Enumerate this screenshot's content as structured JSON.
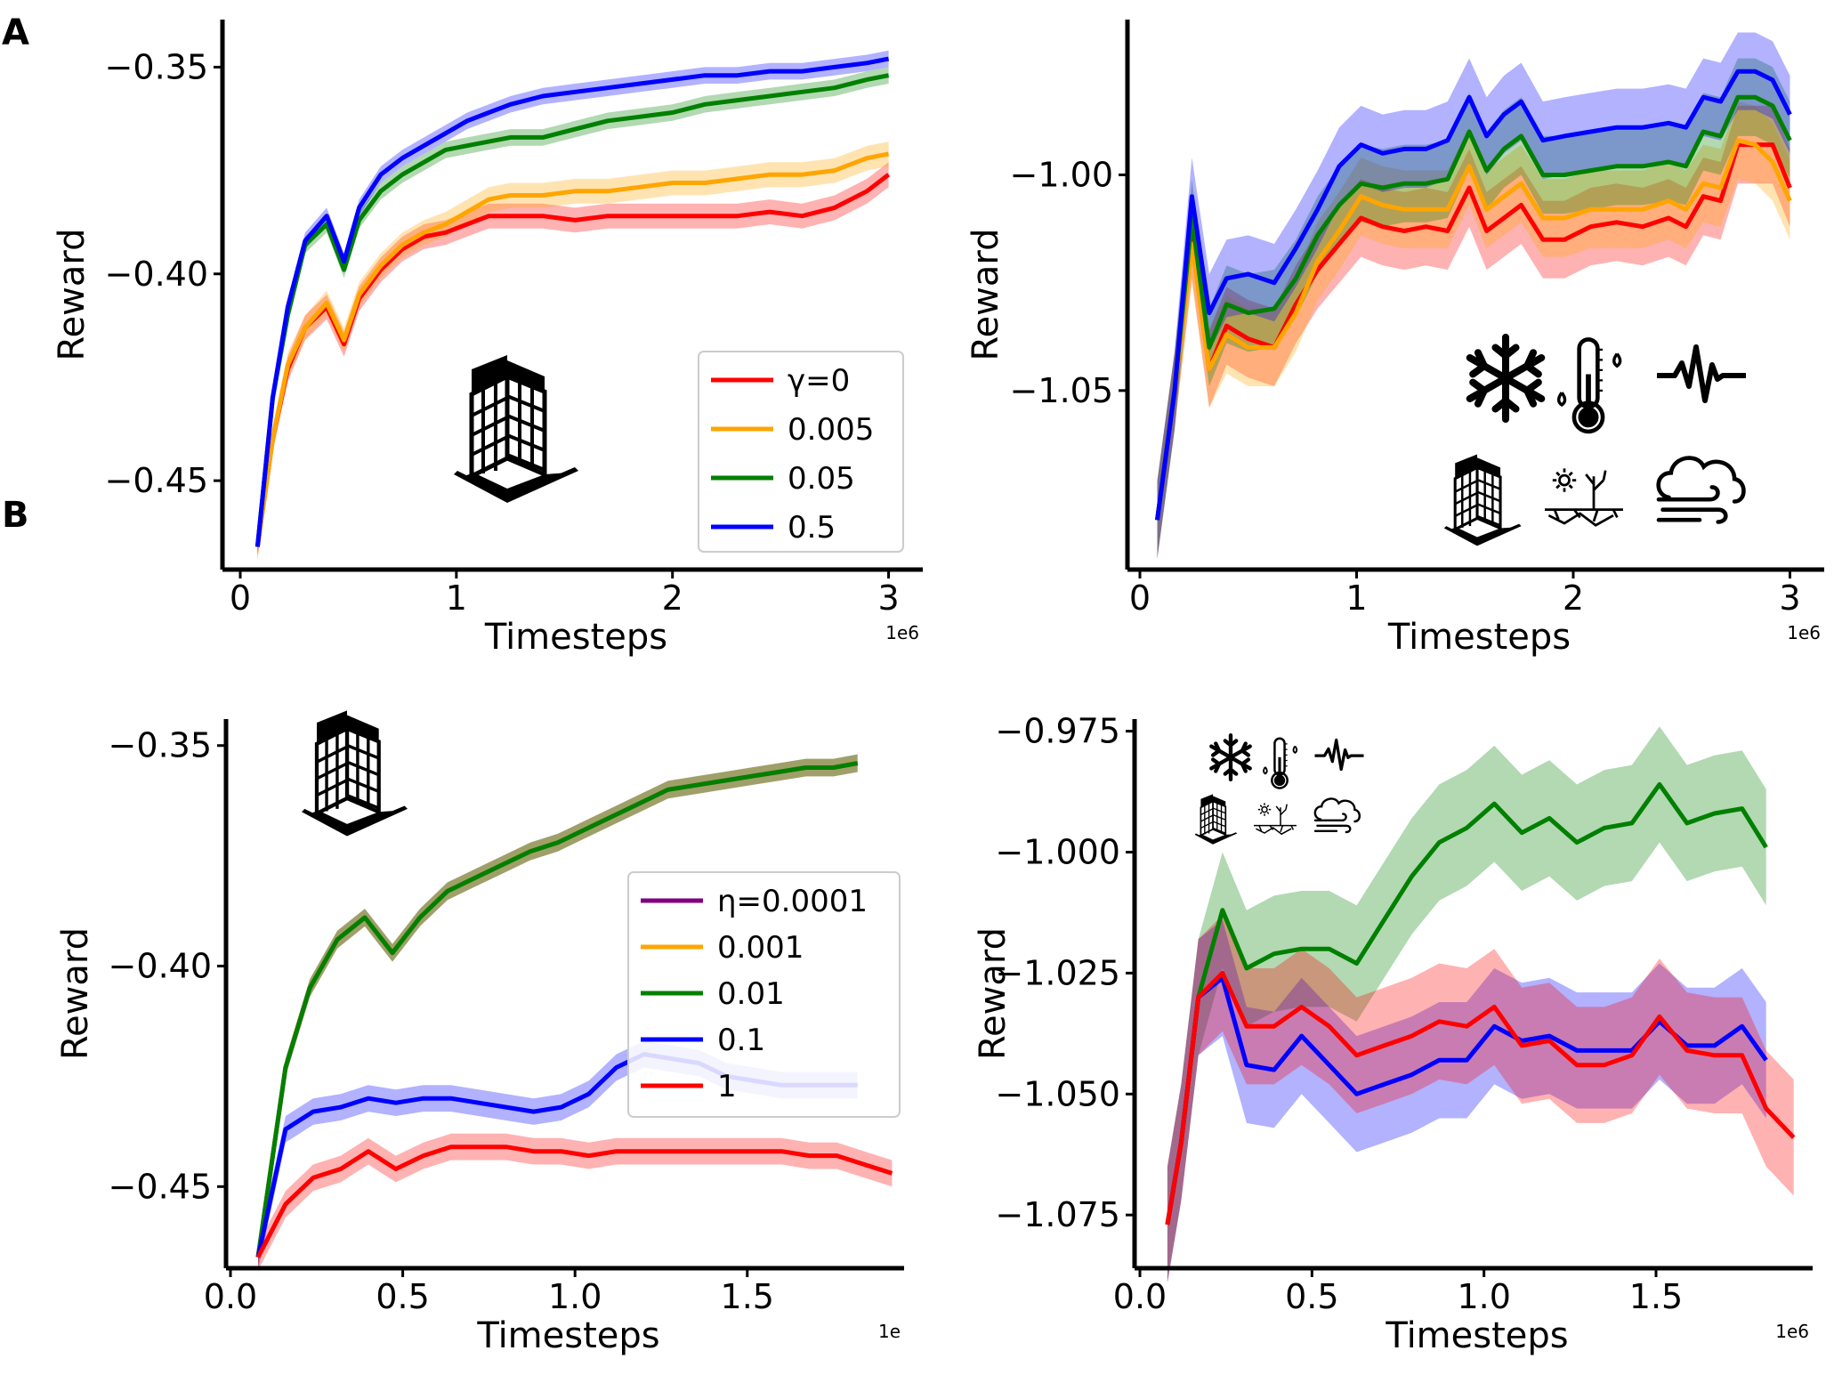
{
  "panels": {
    "a_label": "A",
    "b_label": "B"
  },
  "icon_names": [
    "building-icon",
    "snowflake-icon",
    "thermometer-icon",
    "seismic-wave-icon",
    "drought-icon",
    "wind-cloud-icon"
  ],
  "chart_data": [
    {
      "id": "A-left",
      "type": "line",
      "title": "",
      "xlabel": "Timesteps",
      "ylabel": "Reward",
      "x_scale_label": "1e6",
      "xlim": [
        -0.05,
        3.15
      ],
      "ylim": [
        -0.4715,
        -0.3385
      ],
      "xticks": [
        0,
        1,
        2,
        3
      ],
      "xtick_labels": [
        "0",
        "1",
        "2",
        "3"
      ],
      "yticks": [
        -0.35,
        -0.4,
        -0.45
      ],
      "ytick_labels": [
        "−0.35",
        "−0.40",
        "−0.45"
      ],
      "legend": {
        "position": "lower-right",
        "entries": [
          "γ=0",
          "0.005",
          "0.05",
          "0.5"
        ]
      },
      "icons": [
        "building-icon"
      ],
      "x": [
        0.08,
        0.15,
        0.22,
        0.3,
        0.4,
        0.48,
        0.55,
        0.65,
        0.75,
        0.85,
        0.95,
        1.05,
        1.15,
        1.25,
        1.4,
        1.55,
        1.7,
        1.85,
        2.0,
        2.15,
        2.3,
        2.45,
        2.6,
        2.75,
        2.9,
        3.0
      ],
      "series": [
        {
          "name": "γ=0",
          "color": "#ff0000",
          "band": 0.003,
          "values": [
            -0.466,
            -0.44,
            -0.423,
            -0.413,
            -0.408,
            -0.417,
            -0.406,
            -0.399,
            -0.394,
            -0.391,
            -0.39,
            -0.388,
            -0.386,
            -0.386,
            -0.386,
            -0.387,
            -0.386,
            -0.386,
            -0.386,
            -0.386,
            -0.386,
            -0.385,
            -0.386,
            -0.384,
            -0.38,
            -0.376
          ]
        },
        {
          "name": "0.005",
          "color": "#ffa500",
          "band": 0.003,
          "values": [
            -0.466,
            -0.44,
            -0.422,
            -0.413,
            -0.407,
            -0.416,
            -0.405,
            -0.398,
            -0.393,
            -0.39,
            -0.388,
            -0.385,
            -0.382,
            -0.381,
            -0.381,
            -0.38,
            -0.38,
            -0.379,
            -0.378,
            -0.378,
            -0.377,
            -0.376,
            -0.376,
            -0.375,
            -0.372,
            -0.371
          ]
        },
        {
          "name": "0.05",
          "color": "#008000",
          "band": 0.002,
          "values": [
            -0.466,
            -0.43,
            -0.41,
            -0.393,
            -0.388,
            -0.399,
            -0.387,
            -0.38,
            -0.376,
            -0.373,
            -0.37,
            -0.369,
            -0.368,
            -0.367,
            -0.367,
            -0.365,
            -0.363,
            -0.362,
            -0.361,
            -0.359,
            -0.358,
            -0.357,
            -0.356,
            -0.355,
            -0.353,
            -0.352
          ]
        },
        {
          "name": "0.5",
          "color": "#0000ff",
          "band": 0.002,
          "values": [
            -0.466,
            -0.43,
            -0.408,
            -0.392,
            -0.386,
            -0.397,
            -0.384,
            -0.376,
            -0.372,
            -0.369,
            -0.366,
            -0.363,
            -0.361,
            -0.359,
            -0.357,
            -0.356,
            -0.355,
            -0.354,
            -0.353,
            -0.352,
            -0.352,
            -0.351,
            -0.351,
            -0.35,
            -0.349,
            -0.348
          ]
        }
      ]
    },
    {
      "id": "A-right",
      "type": "line",
      "title": "",
      "xlabel": "Timesteps",
      "ylabel": "Reward",
      "x_scale_label": "1e6",
      "xlim": [
        -0.05,
        3.15
      ],
      "ylim": [
        -1.0915,
        -0.964
      ],
      "xticks": [
        0,
        1,
        2,
        3
      ],
      "xtick_labels": [
        "0",
        "1",
        "2",
        "3"
      ],
      "yticks": [
        -1.0,
        -1.05
      ],
      "ytick_labels": [
        "−1.00",
        "−1.05"
      ],
      "icons": [
        "snowflake-icon",
        "thermometer-icon",
        "seismic-wave-icon",
        "building-icon",
        "drought-icon",
        "wind-cloud-icon"
      ],
      "x": [
        0.08,
        0.16,
        0.24,
        0.32,
        0.4,
        0.5,
        0.62,
        0.72,
        0.82,
        0.92,
        1.02,
        1.12,
        1.22,
        1.32,
        1.42,
        1.52,
        1.6,
        1.68,
        1.76,
        1.86,
        1.96,
        2.08,
        2.2,
        2.32,
        2.44,
        2.52,
        2.6,
        2.68,
        2.76,
        2.84,
        2.92,
        3.0
      ],
      "series": [
        {
          "name": "γ=0",
          "color": "#ff0000",
          "band": 0.009,
          "values": [
            -1.08,
            -1.05,
            -1.015,
            -1.045,
            -1.035,
            -1.038,
            -1.04,
            -1.03,
            -1.022,
            -1.016,
            -1.01,
            -1.012,
            -1.013,
            -1.012,
            -1.013,
            -1.003,
            -1.013,
            -1.01,
            -1.007,
            -1.015,
            -1.015,
            -1.012,
            -1.011,
            -1.012,
            -1.01,
            -1.012,
            -1.005,
            -1.006,
            -0.993,
            -0.993,
            -0.993,
            -1.003
          ]
        },
        {
          "name": "0.005",
          "color": "#ffa500",
          "band": 0.009,
          "values": [
            -1.08,
            -1.05,
            -1.016,
            -1.045,
            -1.037,
            -1.04,
            -1.04,
            -1.032,
            -1.02,
            -1.013,
            -1.005,
            -1.007,
            -1.008,
            -1.008,
            -1.008,
            -0.998,
            -1.008,
            -1.005,
            -1.002,
            -1.01,
            -1.01,
            -1.008,
            -1.008,
            -1.008,
            -1.006,
            -1.008,
            -1.002,
            -1.003,
            -0.992,
            -0.993,
            -0.997,
            -1.006
          ]
        },
        {
          "name": "0.05",
          "color": "#008000",
          "band": 0.009,
          "values": [
            -1.08,
            -1.05,
            -1.01,
            -1.04,
            -1.03,
            -1.032,
            -1.031,
            -1.024,
            -1.014,
            -1.007,
            -1.002,
            -1.003,
            -1.002,
            -1.002,
            -1.001,
            -0.99,
            -0.999,
            -0.994,
            -0.991,
            -1.0,
            -1.0,
            -0.999,
            -0.998,
            -0.998,
            -0.997,
            -0.998,
            -0.99,
            -0.991,
            -0.982,
            -0.982,
            -0.984,
            -0.992
          ]
        },
        {
          "name": "0.5",
          "color": "#0000ff",
          "band": 0.009,
          "values": [
            -1.08,
            -1.05,
            -1.005,
            -1.032,
            -1.024,
            -1.023,
            -1.025,
            -1.017,
            -1.008,
            -0.998,
            -0.993,
            -0.995,
            -0.994,
            -0.994,
            -0.992,
            -0.982,
            -0.991,
            -0.986,
            -0.983,
            -0.992,
            -0.991,
            -0.99,
            -0.989,
            -0.989,
            -0.988,
            -0.989,
            -0.982,
            -0.983,
            -0.976,
            -0.976,
            -0.978,
            -0.986
          ]
        }
      ]
    },
    {
      "id": "B-left",
      "type": "line",
      "title": "",
      "xlabel": "Timesteps",
      "ylabel": "Reward",
      "x_scale_label": "1e",
      "xlim": [
        -0.02,
        1.95
      ],
      "ylim": [
        -0.4685,
        -0.344
      ],
      "xticks": [
        0.0,
        0.5,
        1.0,
        1.5
      ],
      "xtick_labels": [
        "0.0",
        "0.5",
        "1.0",
        "1.5"
      ],
      "yticks": [
        -0.35,
        -0.4,
        -0.45
      ],
      "ytick_labels": [
        "−0.35",
        "−0.40",
        "−0.45"
      ],
      "legend": {
        "position": "center-right",
        "entries": [
          "η=0.0001",
          "0.001",
          "0.01",
          "0.1",
          "1"
        ]
      },
      "icons": [
        "building-icon"
      ],
      "series": [
        {
          "name": "η=0.0001",
          "color": "#800080",
          "band": 0.002,
          "x": [
            0.08,
            0.16,
            0.23,
            0.31,
            0.39,
            0.47,
            0.55,
            0.63,
            0.71,
            0.79,
            0.87,
            0.95,
            1.03,
            1.11,
            1.19,
            1.27,
            1.35,
            1.43,
            1.51,
            1.59,
            1.67,
            1.75,
            1.82
          ],
          "values": [
            -0.466,
            -0.423,
            -0.405,
            -0.394,
            -0.389,
            -0.397,
            -0.389,
            -0.383,
            -0.38,
            -0.377,
            -0.374,
            -0.372,
            -0.369,
            -0.366,
            -0.363,
            -0.36,
            -0.359,
            -0.358,
            -0.357,
            -0.356,
            -0.355,
            -0.355,
            -0.354
          ]
        },
        {
          "name": "0.001",
          "color": "#ffa500",
          "band": 0.002,
          "x": [
            0.08,
            0.16,
            0.23,
            0.31,
            0.39,
            0.47,
            0.55,
            0.63,
            0.71,
            0.79,
            0.87,
            0.95,
            1.03,
            1.11,
            1.19,
            1.27,
            1.35,
            1.43,
            1.51,
            1.59,
            1.67,
            1.75,
            1.82
          ],
          "values": [
            -0.466,
            -0.423,
            -0.405,
            -0.394,
            -0.389,
            -0.397,
            -0.389,
            -0.383,
            -0.38,
            -0.377,
            -0.374,
            -0.372,
            -0.369,
            -0.366,
            -0.363,
            -0.36,
            -0.359,
            -0.358,
            -0.357,
            -0.356,
            -0.355,
            -0.355,
            -0.354
          ]
        },
        {
          "name": "0.01",
          "color": "#008000",
          "band": 0.002,
          "x": [
            0.08,
            0.16,
            0.23,
            0.31,
            0.39,
            0.47,
            0.55,
            0.63,
            0.71,
            0.79,
            0.87,
            0.95,
            1.03,
            1.11,
            1.19,
            1.27,
            1.35,
            1.43,
            1.51,
            1.59,
            1.67,
            1.75,
            1.82
          ],
          "values": [
            -0.466,
            -0.423,
            -0.405,
            -0.394,
            -0.389,
            -0.397,
            -0.389,
            -0.383,
            -0.38,
            -0.377,
            -0.374,
            -0.372,
            -0.369,
            -0.366,
            -0.363,
            -0.36,
            -0.359,
            -0.358,
            -0.357,
            -0.356,
            -0.355,
            -0.355,
            -0.354
          ]
        },
        {
          "name": "0.1",
          "color": "#0000ff",
          "band": 0.003,
          "x": [
            0.08,
            0.16,
            0.24,
            0.32,
            0.4,
            0.48,
            0.56,
            0.64,
            0.72,
            0.8,
            0.88,
            0.96,
            1.04,
            1.12,
            1.2,
            1.28,
            1.36,
            1.44,
            1.52,
            1.6,
            1.68,
            1.76,
            1.82
          ],
          "values": [
            -0.466,
            -0.437,
            -0.433,
            -0.432,
            -0.43,
            -0.431,
            -0.43,
            -0.43,
            -0.431,
            -0.432,
            -0.433,
            -0.432,
            -0.429,
            -0.423,
            -0.42,
            -0.421,
            -0.422,
            -0.425,
            -0.426,
            -0.427,
            -0.427,
            -0.427,
            -0.427
          ]
        },
        {
          "name": "1",
          "color": "#ff0000",
          "band": 0.003,
          "x": [
            0.08,
            0.16,
            0.24,
            0.32,
            0.4,
            0.48,
            0.56,
            0.64,
            0.72,
            0.8,
            0.88,
            0.96,
            1.04,
            1.12,
            1.2,
            1.28,
            1.36,
            1.44,
            1.52,
            1.6,
            1.68,
            1.76,
            1.84,
            1.92
          ],
          "values": [
            -0.466,
            -0.454,
            -0.448,
            -0.446,
            -0.442,
            -0.446,
            -0.443,
            -0.441,
            -0.441,
            -0.441,
            -0.442,
            -0.442,
            -0.443,
            -0.442,
            -0.442,
            -0.442,
            -0.442,
            -0.442,
            -0.442,
            -0.442,
            -0.443,
            -0.443,
            -0.445,
            -0.447
          ]
        }
      ]
    },
    {
      "id": "B-right",
      "type": "line",
      "title": "",
      "xlabel": "Timesteps",
      "ylabel": "Reward",
      "x_scale_label": "1e6",
      "xlim": [
        -0.02,
        1.95
      ],
      "ylim": [
        -1.086,
        -0.9725
      ],
      "xticks": [
        0.0,
        0.5,
        1.0,
        1.5
      ],
      "xtick_labels": [
        "0.0",
        "0.5",
        "1.0",
        "1.5"
      ],
      "yticks": [
        -0.975,
        -1.0,
        -1.025,
        -1.05,
        -1.075
      ],
      "ytick_labels": [
        "−0.975",
        "−1.000",
        "−1.025",
        "−1.050",
        "−1.075"
      ],
      "icons": [
        "snowflake-icon",
        "thermometer-icon",
        "seismic-wave-icon",
        "building-icon",
        "drought-icon",
        "wind-cloud-icon"
      ],
      "series": [
        {
          "name": "0.01",
          "color": "#008000",
          "band": 0.012,
          "x": [
            0.08,
            0.12,
            0.17,
            0.24,
            0.31,
            0.39,
            0.47,
            0.55,
            0.63,
            0.71,
            0.79,
            0.87,
            0.95,
            1.03,
            1.11,
            1.19,
            1.27,
            1.35,
            1.43,
            1.51,
            1.59,
            1.67,
            1.75,
            1.82
          ],
          "values": [
            -1.077,
            -1.06,
            -1.03,
            -1.012,
            -1.024,
            -1.021,
            -1.02,
            -1.02,
            -1.023,
            -1.014,
            -1.005,
            -0.998,
            -0.995,
            -0.99,
            -0.996,
            -0.993,
            -0.998,
            -0.995,
            -0.994,
            -0.986,
            -0.994,
            -0.992,
            -0.991,
            -0.999
          ]
        },
        {
          "name": "0.1",
          "color": "#0000ff",
          "band": 0.012,
          "x": [
            0.08,
            0.12,
            0.17,
            0.24,
            0.31,
            0.39,
            0.47,
            0.55,
            0.63,
            0.71,
            0.79,
            0.87,
            0.95,
            1.03,
            1.11,
            1.19,
            1.27,
            1.35,
            1.43,
            1.51,
            1.59,
            1.67,
            1.75,
            1.82
          ],
          "values": [
            -1.077,
            -1.06,
            -1.03,
            -1.026,
            -1.044,
            -1.045,
            -1.038,
            -1.044,
            -1.05,
            -1.048,
            -1.046,
            -1.043,
            -1.043,
            -1.036,
            -1.039,
            -1.038,
            -1.041,
            -1.041,
            -1.041,
            -1.035,
            -1.04,
            -1.04,
            -1.036,
            -1.043
          ]
        },
        {
          "name": "1",
          "color": "#ff0000",
          "band": 0.012,
          "x": [
            0.08,
            0.12,
            0.17,
            0.24,
            0.31,
            0.39,
            0.47,
            0.55,
            0.63,
            0.71,
            0.79,
            0.87,
            0.95,
            1.03,
            1.11,
            1.19,
            1.27,
            1.35,
            1.43,
            1.51,
            1.59,
            1.67,
            1.75,
            1.82,
            1.9
          ],
          "values": [
            -1.077,
            -1.06,
            -1.03,
            -1.025,
            -1.036,
            -1.036,
            -1.032,
            -1.036,
            -1.042,
            -1.04,
            -1.038,
            -1.035,
            -1.036,
            -1.032,
            -1.04,
            -1.039,
            -1.044,
            -1.044,
            -1.042,
            -1.034,
            -1.041,
            -1.042,
            -1.042,
            -1.053,
            -1.059
          ]
        }
      ]
    }
  ]
}
